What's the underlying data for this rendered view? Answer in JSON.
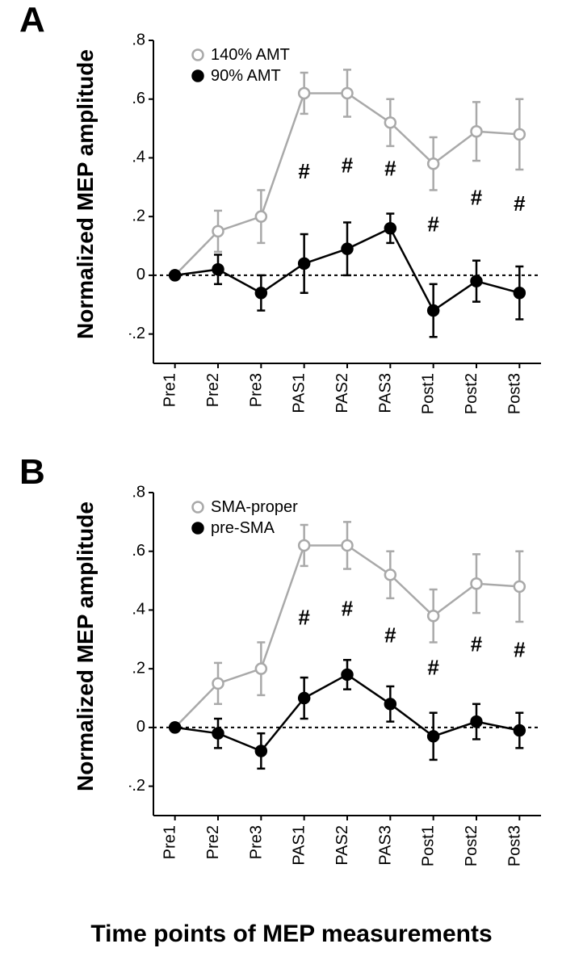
{
  "global": {
    "xlabel": "Time points of MEP measurements",
    "categories": [
      "Pre1",
      "Pre2",
      "Pre3",
      "PAS1",
      "PAS2",
      "PAS3",
      "Post1",
      "Post2",
      "Post3"
    ],
    "ylim": [
      -0.3,
      0.8
    ],
    "yticks": [
      -0.2,
      0,
      0.2,
      0.4,
      0.6,
      0.8
    ],
    "ytick_labels": [
      "-.2",
      "0",
      ".2",
      ".4",
      ".6",
      ".8"
    ],
    "marker_radius": 6.5,
    "line_width": 2.5,
    "err_cap": 5,
    "tick_fontsize": 20,
    "label_fontsize": 28,
    "panel_label_fontsize": 44,
    "hash_fontsize": 26,
    "axis_color": "#000000",
    "background_color": "#ffffff",
    "zero_line_dash": "4 4"
  },
  "panels": {
    "A": {
      "panel_label": "A",
      "ylabel": "Normalized MEP amplitude",
      "legend": {
        "open": {
          "label": "140% AMT",
          "marker": "open",
          "color": "#a9a9a9"
        },
        "closed": {
          "label": "90% AMT",
          "marker": "closed",
          "color": "#000000"
        }
      },
      "series": {
        "open": {
          "color": "#a9a9a9",
          "y": [
            0.0,
            0.15,
            0.2,
            0.62,
            0.62,
            0.52,
            0.38,
            0.49,
            0.48
          ],
          "err": [
            0.0,
            0.07,
            0.09,
            0.07,
            0.08,
            0.08,
            0.09,
            0.1,
            0.12
          ]
        },
        "closed": {
          "color": "#000000",
          "y": [
            0.0,
            0.02,
            -0.06,
            0.04,
            0.09,
            0.16,
            -0.12,
            -0.02,
            -0.06
          ],
          "err": [
            0.0,
            0.05,
            0.06,
            0.1,
            0.09,
            0.05,
            0.09,
            0.07,
            0.09
          ]
        }
      },
      "hash_indices": [
        3,
        4,
        5,
        6,
        7,
        8
      ],
      "hash_y": [
        0.33,
        0.35,
        0.34,
        0.15,
        0.24,
        0.22
      ]
    },
    "B": {
      "panel_label": "B",
      "ylabel": "Normalized MEP amplitude",
      "legend": {
        "open": {
          "label": "SMA-proper",
          "marker": "open",
          "color": "#a9a9a9"
        },
        "closed": {
          "label": "pre-SMA",
          "marker": "closed",
          "color": "#000000"
        }
      },
      "series": {
        "open": {
          "color": "#a9a9a9",
          "y": [
            0.0,
            0.15,
            0.2,
            0.62,
            0.62,
            0.52,
            0.38,
            0.49,
            0.48
          ],
          "err": [
            0.0,
            0.07,
            0.09,
            0.07,
            0.08,
            0.08,
            0.09,
            0.1,
            0.12
          ]
        },
        "closed": {
          "color": "#000000",
          "y": [
            0.0,
            -0.02,
            -0.08,
            0.1,
            0.18,
            0.08,
            -0.03,
            0.02,
            -0.01
          ],
          "err": [
            0.0,
            0.05,
            0.06,
            0.07,
            0.05,
            0.06,
            0.08,
            0.06,
            0.06
          ]
        }
      },
      "hash_indices": [
        3,
        4,
        5,
        6,
        7,
        8
      ],
      "hash_y": [
        0.35,
        0.38,
        0.29,
        0.18,
        0.26,
        0.24
      ]
    }
  }
}
